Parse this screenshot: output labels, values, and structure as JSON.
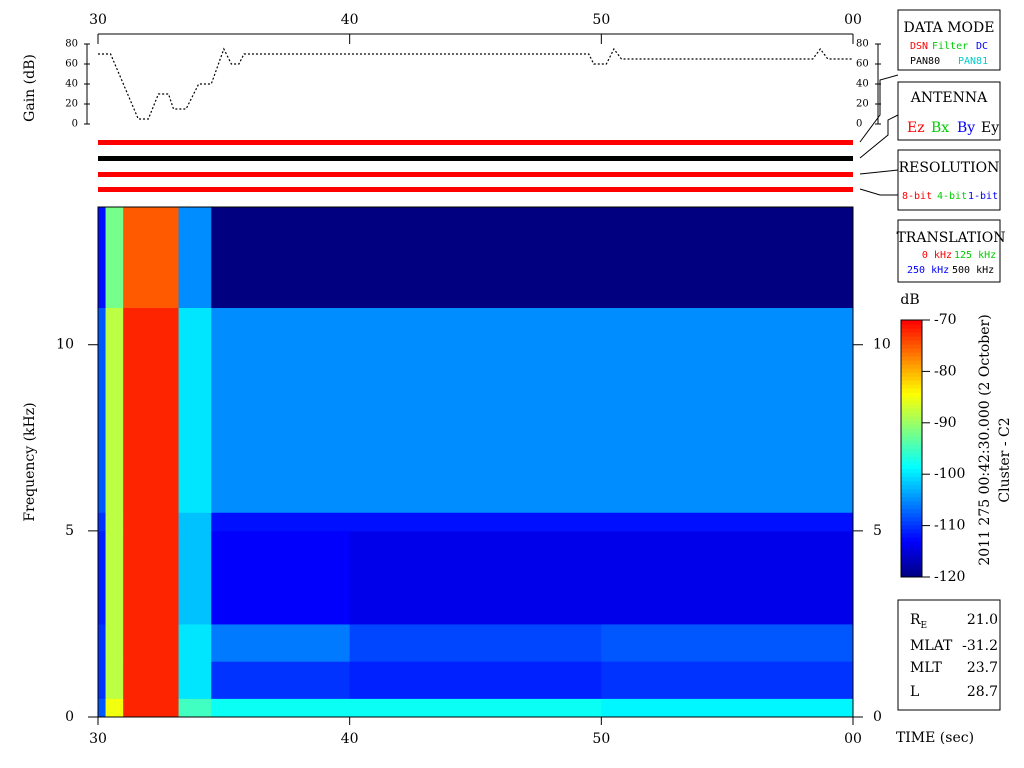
{
  "chart_data": [
    {
      "type": "line",
      "ylabel": "Gain (dB)",
      "color": "#000000",
      "x": [
        30,
        30.5,
        31.6,
        32,
        32.4,
        32.8,
        33,
        33.5,
        34,
        34.5,
        35,
        35.3,
        35.6,
        35.8,
        49.5,
        49.7,
        50.2,
        50.5,
        50.8,
        58.4,
        58.7,
        59,
        60
      ],
      "values": [
        70,
        70,
        5,
        5,
        30,
        30,
        15,
        15,
        40,
        40,
        75,
        60,
        60,
        70,
        70,
        60,
        60,
        75,
        65,
        65,
        75,
        65,
        65
      ],
      "xlim": [
        30,
        60
      ],
      "xticks": [
        30,
        40,
        50,
        {
          "value": 60,
          "label": "00"
        }
      ],
      "ylim": [
        0,
        80
      ],
      "yticks": [
        0,
        20,
        40,
        60,
        80
      ]
    },
    {
      "type": "heatmap",
      "ylabel": "Frequency (kHz)",
      "xlabel": "TIME (sec)",
      "x_bins": [
        30,
        30.3,
        31,
        33.2,
        34.5,
        40,
        50,
        60
      ],
      "y_bins": [
        0,
        0.5,
        1.5,
        2.5,
        5,
        5.5,
        11,
        13.7
      ],
      "z": [
        [
          -108,
          -85,
          -72,
          -95,
          -98,
          -98,
          -99
        ],
        [
          -110,
          -88,
          -72,
          -100,
          -110,
          -111,
          -110
        ],
        [
          -110,
          -88,
          -72,
          -100,
          -106,
          -109,
          -108
        ],
        [
          -111,
          -88,
          -72,
          -102,
          -113,
          -114,
          -114
        ],
        [
          -110,
          -88,
          -72,
          -102,
          -112,
          -112,
          -112
        ],
        [
          -108,
          -88,
          -72,
          -100,
          -105,
          -105,
          -105
        ],
        [
          -112,
          -92,
          -75,
          -105,
          -120,
          -120,
          -120
        ]
      ],
      "xlim": [
        30,
        60
      ],
      "xticks": [
        30,
        40,
        50,
        {
          "value": 60,
          "label": "00"
        }
      ],
      "ylim": [
        0,
        13.7
      ],
      "yticks": [
        0,
        5,
        10
      ],
      "colormap": [
        "#000080",
        "#0000ff",
        "#0080ff",
        "#00ffff",
        "#80ff80",
        "#ffff00",
        "#ff8000",
        "#ff0000"
      ],
      "colorbar": {
        "label": "dB",
        "clim": [
          -120,
          -70
        ],
        "ticks": [
          -70,
          -80,
          -90,
          -100,
          -110,
          -120
        ]
      }
    }
  ],
  "side_label": "2011 275 00:42:30.000 (2 October)",
  "spacecraft": "Cluster - C2",
  "panels": {
    "data_mode": {
      "title": "DATA MODE",
      "items": [
        "DSN",
        "Filter",
        "DC",
        "PAN80",
        "PAN81"
      ]
    },
    "antenna": {
      "title": "ANTENNA",
      "items": [
        "Ez",
        "Bx",
        "By",
        "Ey"
      ]
    },
    "resolution": {
      "title": "RESOLUTION",
      "items": [
        "8-bit",
        "4-bit",
        "1-bit"
      ]
    },
    "translation": {
      "title": "TRANSLATION",
      "items": [
        "0 kHz",
        "125 kHz",
        "250 kHz",
        "500 kHz"
      ]
    }
  },
  "ephemeris": [
    {
      "label": "R",
      "sub": "E",
      "value": "21.0"
    },
    {
      "label": "MLAT",
      "value": "-31.2"
    },
    {
      "label": "MLT",
      "value": "23.7"
    },
    {
      "label": "L",
      "value": "28.7"
    }
  ]
}
